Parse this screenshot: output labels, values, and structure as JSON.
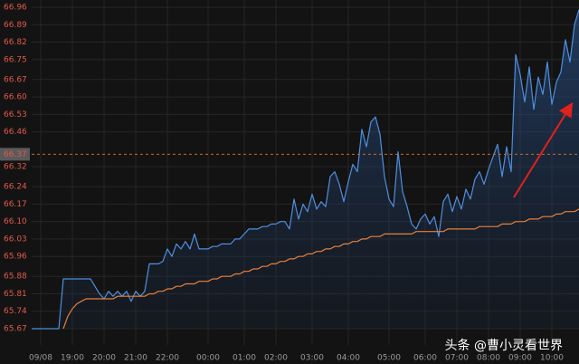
{
  "chart_data": {
    "type": "line",
    "categories": [
      null,
      null,
      "09/08",
      null,
      null,
      null,
      null,
      null,
      null,
      "19:00",
      null,
      null,
      null,
      null,
      null,
      null,
      "20:00",
      null,
      null,
      null,
      null,
      null,
      null,
      "21:00",
      null,
      null,
      null,
      null,
      null,
      null,
      "22:00",
      null,
      null,
      null,
      null,
      null,
      null,
      null,
      null,
      "00:00",
      null,
      null,
      null,
      null,
      null,
      null,
      null,
      "01:00",
      null,
      null,
      null,
      null,
      null,
      null,
      "02:00",
      null,
      null,
      null,
      null,
      null,
      null,
      null,
      "03:00",
      null,
      null,
      null,
      null,
      null,
      null,
      null,
      "04:00",
      null,
      null,
      null,
      null,
      null,
      null,
      null,
      null,
      "05:00",
      null,
      null,
      null,
      null,
      null,
      null,
      null,
      "06:00",
      null,
      null,
      null,
      null,
      null,
      null,
      "07:00",
      null,
      null,
      null,
      null,
      null,
      null,
      "08:00",
      null,
      null,
      null,
      null,
      null,
      null,
      "09:00",
      null,
      null,
      null,
      null,
      null,
      null,
      "10:00",
      null,
      null,
      null,
      null,
      null,
      null
    ],
    "series": [
      {
        "color": "#4f8fe0",
        "values": [
          65.67,
          65.67,
          65.67,
          65.67,
          65.67,
          65.67,
          65.67,
          65.87,
          65.87,
          65.87,
          65.87,
          65.87,
          65.87,
          65.87,
          65.84,
          65.81,
          65.79,
          65.82,
          65.8,
          65.82,
          65.8,
          65.82,
          65.78,
          65.82,
          65.8,
          65.82,
          65.93,
          65.93,
          65.93,
          65.94,
          65.99,
          65.96,
          66.01,
          65.99,
          66.02,
          65.99,
          66.05,
          65.99,
          65.99,
          65.99,
          66.0,
          66.0,
          66.01,
          66.01,
          66.01,
          66.03,
          66.03,
          66.05,
          66.07,
          66.07,
          66.07,
          66.08,
          66.08,
          66.09,
          66.09,
          66.1,
          66.1,
          66.07,
          66.19,
          66.11,
          66.17,
          66.14,
          66.21,
          66.15,
          66.18,
          66.16,
          66.28,
          66.3,
          66.25,
          66.18,
          66.26,
          66.33,
          66.3,
          66.47,
          66.4,
          66.5,
          66.52,
          66.45,
          66.28,
          66.19,
          66.16,
          66.38,
          66.22,
          66.16,
          66.09,
          66.07,
          66.11,
          66.13,
          66.09,
          66.12,
          66.04,
          66.18,
          66.21,
          66.14,
          66.2,
          66.15,
          66.23,
          66.19,
          66.27,
          66.3,
          66.25,
          66.31,
          66.36,
          66.41,
          66.28,
          66.4,
          66.3,
          66.77,
          66.69,
          66.58,
          66.72,
          66.55,
          66.68,
          66.61,
          66.74,
          66.57,
          66.66,
          66.7,
          66.83,
          66.74,
          66.89,
          66.95
        ],
        "area": true
      },
      {
        "color": "#e8803a",
        "values": [
          null,
          null,
          null,
          null,
          null,
          null,
          null,
          65.67,
          65.72,
          65.75,
          65.77,
          65.78,
          65.79,
          65.79,
          65.79,
          65.79,
          65.79,
          65.79,
          65.79,
          65.8,
          65.8,
          65.8,
          65.8,
          65.8,
          65.8,
          65.8,
          65.81,
          65.81,
          65.82,
          65.82,
          65.83,
          65.83,
          65.84,
          65.84,
          65.85,
          65.85,
          65.85,
          65.86,
          65.86,
          65.86,
          65.87,
          65.87,
          65.88,
          65.88,
          65.88,
          65.89,
          65.89,
          65.9,
          65.9,
          65.91,
          65.91,
          65.92,
          65.92,
          65.93,
          65.93,
          65.94,
          65.94,
          65.95,
          65.95,
          65.96,
          65.96,
          65.97,
          65.97,
          65.98,
          65.98,
          65.99,
          65.99,
          66.0,
          66.0,
          66.01,
          66.01,
          66.02,
          66.02,
          66.03,
          66.03,
          66.04,
          66.04,
          66.04,
          66.05,
          66.05,
          66.05,
          66.05,
          66.05,
          66.05,
          66.05,
          66.06,
          66.06,
          66.06,
          66.06,
          66.06,
          66.06,
          66.06,
          66.07,
          66.07,
          66.07,
          66.07,
          66.07,
          66.07,
          66.07,
          66.08,
          66.08,
          66.08,
          66.08,
          66.08,
          66.09,
          66.09,
          66.09,
          66.1,
          66.1,
          66.1,
          66.11,
          66.11,
          66.11,
          66.12,
          66.12,
          66.12,
          66.13,
          66.13,
          66.14,
          66.14,
          66.14,
          66.15
        ]
      }
    ],
    "ylim": [
      65.67,
      66.96
    ],
    "yticks": [
      65.67,
      65.74,
      65.81,
      65.88,
      65.96,
      66.03,
      {
        "value": 66.1,
        "label": "66.10"
      },
      66.17,
      66.24,
      66.32,
      66.46,
      66.53,
      {
        "value": 66.6,
        "label": "66.60"
      },
      66.67,
      66.75,
      66.82,
      66.89,
      66.96
    ],
    "current_price": 66.37,
    "grid": true,
    "watermark": "头条 @曹小灵看世界"
  }
}
